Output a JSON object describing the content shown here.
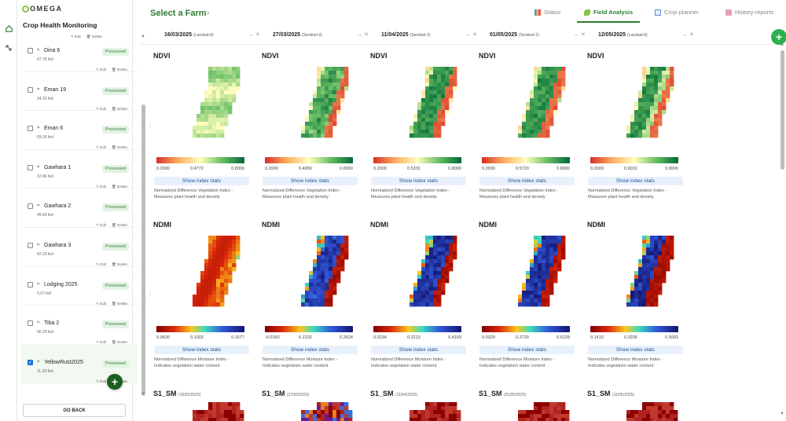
{
  "app": {
    "logo_text": "OMEGA"
  },
  "sidebar": {
    "title": "Crop Health Monitoring",
    "edit_label": "Edit",
    "delete_label": "Delete",
    "farms": [
      {
        "name": "Dina 6",
        "area": "47.76 fed",
        "status": "Processed",
        "selected": false
      },
      {
        "name": "Eman 19",
        "area": "34.23 fed",
        "status": "Processed",
        "selected": false
      },
      {
        "name": "Eman 6",
        "area": "69.26 fed",
        "status": "Processed",
        "selected": false
      },
      {
        "name": "Gawhara 1",
        "area": "37.86 fed",
        "status": "Processed",
        "selected": false
      },
      {
        "name": "Gawhara 2",
        "area": "45.64 fed",
        "status": "Processed",
        "selected": false
      },
      {
        "name": "Gawhara 3",
        "area": "42.20 fed",
        "status": "Processed",
        "selected": false
      },
      {
        "name": "Lodging 2025",
        "area": "3.07 fed",
        "status": "Processed",
        "selected": false
      },
      {
        "name": "Tiba 2",
        "area": "56.29 fed",
        "status": "Processed",
        "selected": false
      },
      {
        "name": "YellowRust2025",
        "area": "11.29 fed",
        "status": "Processed",
        "selected": true
      }
    ],
    "go_back": "GO BACK",
    "add_icon": "plus-icon"
  },
  "header": {
    "select_farm": "Select a Farm",
    "tabs": [
      {
        "label": "Status",
        "icon": "bar-chart-icon",
        "active": false
      },
      {
        "label": "Field Analysis",
        "icon": "plant-icon",
        "active": true
      },
      {
        "label": "Crop-planner",
        "icon": "calendar-icon",
        "active": false
      },
      {
        "label": "History-reports",
        "icon": "report-icon",
        "active": false
      }
    ]
  },
  "dates": [
    {
      "date": "16/03/2025",
      "satellite": "(Landsat-8)"
    },
    {
      "date": "27/03/2025",
      "satellite": "(Sentinel-2)"
    },
    {
      "date": "11/04/2025",
      "satellite": "(Sentinel-2)"
    },
    {
      "date": "01/05/2025",
      "satellite": "(Sentinel-2)"
    },
    {
      "date": "12/05/2025",
      "satellite": "(Landsat-8)"
    }
  ],
  "ndvi": {
    "title": "NDVI",
    "stats_label": "Show index stats",
    "desc1": "Normalized Difference Vegetation Index -",
    "desc2": "Measures plant health and density",
    "scales": [
      [
        "0.2000",
        "0.4772",
        "0.8000"
      ],
      [
        "0.2000",
        "0.4959",
        "0.8000"
      ],
      [
        "0.2000",
        "0.5331",
        "0.8000"
      ],
      [
        "0.2000",
        "0.5720",
        "0.8000"
      ],
      [
        "0.2000",
        "0.6031",
        "0.8000"
      ]
    ]
  },
  "ndmi": {
    "title": "NDMI",
    "stats_label": "Show index stats",
    "desc1": "Normalized Difference Moisture Index -",
    "desc2": "Indicates vegetation water content",
    "scales": [
      [
        "0.0430",
        "0.1003",
        "0.1577"
      ],
      [
        "-0.0160",
        "0.1232",
        "0.2624"
      ],
      [
        "0.0234",
        "0.2213",
        "0.4193"
      ],
      [
        "0.0329",
        "0.2729",
        "0.5128"
      ],
      [
        "0.1410",
        "0.3206",
        "0.5001"
      ]
    ]
  },
  "s1sm": {
    "title": "S1_SM",
    "dates": [
      "(15/03/2025)",
      "(27/03/2025)",
      "(11/04/2025)",
      "(01/05/2025)",
      "(11/05/2025)"
    ]
  },
  "colors": {
    "brand_green": "#2e7d32",
    "fab_green": "#2bb24c",
    "badge_bg": "#e3f3e4",
    "stats_bg": "#e8f1fb"
  }
}
